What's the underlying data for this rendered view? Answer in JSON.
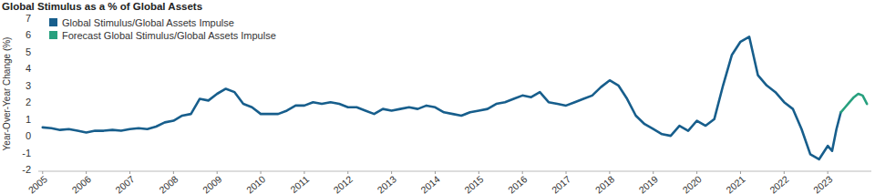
{
  "chart_data": {
    "type": "line",
    "title": "Global Stimulus as a % of Global Assets",
    "y_label": "Year-Over-Year Change (%)",
    "x": [
      2005,
      2005.2,
      2005.4,
      2005.6,
      2005.8,
      2006,
      2006.2,
      2006.4,
      2006.6,
      2006.8,
      2007,
      2007.2,
      2007.4,
      2007.6,
      2007.8,
      2008,
      2008.2,
      2008.4,
      2008.6,
      2008.8,
      2009,
      2009.2,
      2009.4,
      2009.6,
      2009.8,
      2010,
      2010.2,
      2010.4,
      2010.6,
      2010.8,
      2011,
      2011.2,
      2011.4,
      2011.6,
      2011.8,
      2012,
      2012.2,
      2012.4,
      2012.6,
      2012.8,
      2013,
      2013.2,
      2013.4,
      2013.6,
      2013.8,
      2014,
      2014.2,
      2014.4,
      2014.6,
      2014.8,
      2015,
      2015.2,
      2015.4,
      2015.6,
      2015.8,
      2016,
      2016.2,
      2016.4,
      2016.6,
      2016.8,
      2017,
      2017.2,
      2017.4,
      2017.6,
      2017.8,
      2018,
      2018.2,
      2018.4,
      2018.6,
      2018.8,
      2019,
      2019.2,
      2019.4,
      2019.6,
      2019.8,
      2020,
      2020.2,
      2020.4,
      2020.6,
      2020.8,
      2021,
      2021.2,
      2021.4,
      2021.6,
      2021.8,
      2022,
      2022.2,
      2022.4,
      2022.6,
      2022.8,
      2023,
      2023.1,
      2023.2,
      2023.3,
      2023.4,
      2023.5,
      2023.6,
      2023.7,
      2023.8,
      2023.9
    ],
    "series": [
      {
        "name": "Global Stimulus/Global Assets Impulse",
        "color": "#175e8c",
        "values": [
          0.5,
          0.45,
          0.35,
          0.4,
          0.3,
          0.2,
          0.3,
          0.3,
          0.35,
          0.3,
          0.4,
          0.45,
          0.4,
          0.55,
          0.8,
          0.9,
          1.2,
          1.3,
          2.2,
          2.1,
          2.5,
          2.8,
          2.6,
          1.9,
          1.7,
          1.3,
          1.3,
          1.3,
          1.5,
          1.8,
          1.8,
          2.0,
          1.9,
          2.0,
          1.9,
          1.7,
          1.7,
          1.5,
          1.3,
          1.6,
          1.5,
          1.6,
          1.7,
          1.6,
          1.8,
          1.7,
          1.4,
          1.3,
          1.2,
          1.4,
          1.5,
          1.6,
          1.9,
          2.0,
          2.2,
          2.4,
          2.3,
          2.6,
          2.0,
          1.9,
          1.8,
          2.0,
          2.2,
          2.4,
          2.9,
          3.3,
          3.0,
          2.2,
          1.2,
          0.7,
          0.4,
          0.1,
          0.0,
          0.6,
          0.3,
          0.9,
          0.6,
          1.0,
          3.0,
          4.8,
          5.6,
          5.9,
          3.6,
          3.0,
          2.6,
          2.0,
          1.6,
          0.4,
          -1.1,
          -1.4,
          -0.6,
          -0.9,
          0.4,
          1.4,
          null,
          null,
          null,
          null,
          null,
          null
        ]
      },
      {
        "name": "Forecast Global Stimulus/Global Assets Impulse",
        "color": "#27a07e",
        "values": [
          null,
          null,
          null,
          null,
          null,
          null,
          null,
          null,
          null,
          null,
          null,
          null,
          null,
          null,
          null,
          null,
          null,
          null,
          null,
          null,
          null,
          null,
          null,
          null,
          null,
          null,
          null,
          null,
          null,
          null,
          null,
          null,
          null,
          null,
          null,
          null,
          null,
          null,
          null,
          null,
          null,
          null,
          null,
          null,
          null,
          null,
          null,
          null,
          null,
          null,
          null,
          null,
          null,
          null,
          null,
          null,
          null,
          null,
          null,
          null,
          null,
          null,
          null,
          null,
          null,
          null,
          null,
          null,
          null,
          null,
          null,
          null,
          null,
          null,
          null,
          null,
          null,
          null,
          null,
          null,
          null,
          null,
          null,
          null,
          null,
          null,
          null,
          null,
          null,
          null,
          null,
          null,
          null,
          1.4,
          1.7,
          2.0,
          2.3,
          2.5,
          2.4,
          1.9
        ]
      }
    ],
    "xlim": [
      2004.9,
      2024.0
    ],
    "xticks": [
      2005,
      2006,
      2007,
      2008,
      2009,
      2010,
      2011,
      2012,
      2013,
      2014,
      2015,
      2016,
      2017,
      2018,
      2019,
      2020,
      2021,
      2022,
      2023
    ],
    "ylim": [
      -2,
      7
    ],
    "yticks": [
      -2,
      -1,
      0,
      1,
      2,
      3,
      4,
      5,
      6,
      7
    ],
    "grid": false,
    "legend": "top-left"
  }
}
